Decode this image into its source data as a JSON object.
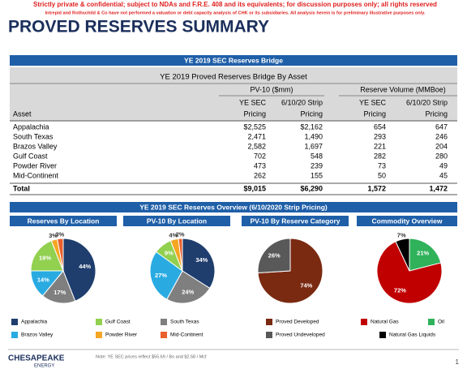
{
  "disclaimer": [
    "Strictly private & confidential; subject to NDAs and F.R.E. 408 and its equivalents; for discussion purposes only; all rights reserved",
    "Intrepid and Rothschild & Co have not performed a valuation or debt capacity analysis of CHK or its subsidiaries. All analysis herein is for preliminary illustrative purposes only."
  ],
  "title": "PROVED RESERVES SUMMARY",
  "table": {
    "section_title": "YE 2019 SEC Reserves Bridge",
    "title": "YE 2019 Proved Reserves Bridge By Asset",
    "group_headers": [
      "PV-10 ($mm)",
      "Reserve Volume (MMBoe)"
    ],
    "column_headers": [
      [
        "Asset"
      ],
      [
        "YE SEC",
        "Pricing"
      ],
      [
        "6/10/20 Strip",
        "Pricing"
      ],
      [
        "YE SEC",
        "Pricing"
      ],
      [
        "6/10/20 Strip",
        "Pricing"
      ]
    ],
    "rows": [
      [
        "Appalachia",
        "$2,525",
        "$2,162",
        "654",
        "647"
      ],
      [
        "South Texas",
        "2,471",
        "1,490",
        "293",
        "246"
      ],
      [
        "Brazos Valley",
        "2,582",
        "1,697",
        "221",
        "204"
      ],
      [
        "Gulf Coast",
        "702",
        "548",
        "282",
        "280"
      ],
      [
        "Powder River",
        "473",
        "239",
        "73",
        "49"
      ],
      [
        "Mid-Continent",
        "262",
        "155",
        "50",
        "45"
      ]
    ],
    "total": [
      "Total",
      "$9,015",
      "$6,290",
      "1,572",
      "1,472"
    ]
  },
  "overview_title": "YE 2019 SEC Reserves Overview (6/10/2020 Strip Pricing)",
  "pies": [
    {
      "type": "pie",
      "title": "Reserves By Location",
      "values": [
        44,
        17,
        14,
        19,
        3,
        3
      ],
      "value_labels": [
        "44%",
        "17%",
        "14%",
        "19%",
        "3%",
        "3%"
      ],
      "colors": [
        "#1f3e6e",
        "#7f7f7f",
        "#29abe2",
        "#92d050",
        "#f5a623",
        "#e8602c"
      ]
    },
    {
      "type": "pie",
      "title": "PV-10 By Location",
      "values": [
        34,
        24,
        27,
        9,
        4,
        2
      ],
      "value_labels": [
        "34%",
        "24%",
        "27%",
        "9%",
        "4%",
        "2%"
      ],
      "colors": [
        "#1f3e6e",
        "#7f7f7f",
        "#29abe2",
        "#92d050",
        "#f5a623",
        "#e8602c"
      ]
    },
    {
      "type": "pie",
      "title": "PV-10 By Reserve Category",
      "values": [
        74,
        26
      ],
      "value_labels": [
        "74%",
        "26%"
      ],
      "colors": [
        "#7b2a12",
        "#595959"
      ]
    },
    {
      "type": "pie",
      "title": "Commodity Overview",
      "values": [
        21,
        72,
        7
      ],
      "value_labels": [
        "21%",
        "72%",
        "7%"
      ],
      "colors": [
        "#2fb25a",
        "#c00000",
        "#000000"
      ]
    }
  ],
  "legends": [
    {
      "items": [
        {
          "label": "Appalachia",
          "color": "#1f3e6e"
        },
        {
          "label": "Gulf Coast",
          "color": "#92d050"
        },
        {
          "label": "South Texas",
          "color": "#7f7f7f"
        },
        {
          "label": "Brazos Valley",
          "color": "#29abe2"
        },
        {
          "label": "Powder River",
          "color": "#f5a623"
        },
        {
          "label": "Mid-Continent",
          "color": "#e8602c"
        }
      ]
    },
    {
      "items": [
        {
          "label": "Proved Developed",
          "color": "#7b2a12"
        },
        {
          "label": "Proved Undeveloped",
          "color": "#595959"
        }
      ]
    },
    {
      "items": [
        {
          "label": "Natural Gas",
          "color": "#c00000"
        },
        {
          "label": "Oil",
          "color": "#2fb25a"
        },
        {
          "label": "Natural Gas Liquids",
          "color": "#000000"
        }
      ]
    }
  ],
  "footer": {
    "logo": "CHESAPEAKE",
    "logo_sub": "ENERGY",
    "note": "Note: YE SEC prices reflect $55.69 / Bo and $2.58 / Mcf",
    "page": "1"
  }
}
